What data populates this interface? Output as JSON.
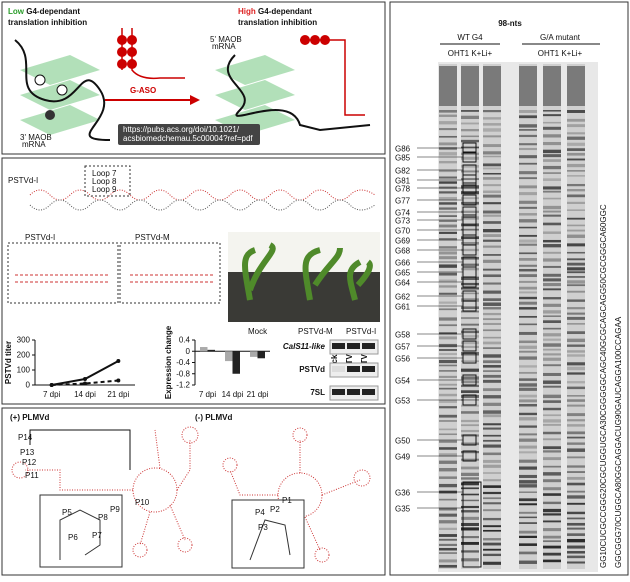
{
  "panel_a": {
    "low": "Low",
    "low_rest": "G4-dependant",
    "low_line2": "translation inhibition",
    "high": "High",
    "high_rest": "G4-dependant",
    "high_line2": "translation inhibition",
    "aso": "G-ASO",
    "mrna_5": "5' MAOB",
    "mrna_5b": "mRNA",
    "mrna_3": "3' MAOB",
    "mrna_3b": "mRNA",
    "tooltip_1": "https://pubs.acs.org/doi/10.1021/",
    "tooltip_2": "acsbiomedchemau.5c00004?ref=pdf"
  },
  "panel_b": {
    "strip_label": "PSTVd-I",
    "box_left": "PSTVd-I",
    "box_right": "PSTVd-M",
    "loops": [
      "Loop 7",
      "Loop 8",
      "Loop 9"
    ],
    "photo_labels": [
      "Mock",
      "PSTVd-M",
      "PSTVd-I"
    ],
    "titer_chart": {
      "type": "line",
      "y_label": "PSTVd titer",
      "categories": [
        "7 dpi",
        "14 dpi",
        "21 dpi"
      ],
      "series": [
        {
          "color": "#111",
          "dash": false,
          "values": [
            0,
            40,
            160
          ]
        },
        {
          "color": "#111",
          "dash": true,
          "values": [
            0,
            10,
            30
          ]
        }
      ],
      "ylim": [
        0,
        300
      ],
      "yticks": [
        0,
        100,
        200,
        300
      ]
    },
    "expr_chart": {
      "type": "bar",
      "y_label": "Expression change",
      "categories": [
        "7 dpi",
        "14 dpi",
        "21 dpi"
      ],
      "series": [
        {
          "color": "#aaa",
          "values": [
            0.15,
            -0.35,
            -0.2
          ]
        },
        {
          "color": "#222",
          "values": [
            0.05,
            -0.8,
            -0.25
          ]
        }
      ],
      "ylim": [
        -1.2,
        0.4
      ],
      "yticks": [
        -1.2,
        -0.8,
        -0.4,
        0,
        0.4
      ]
    },
    "blot": {
      "columns": [
        "Mock",
        "PSTVd-M",
        "PSTVd-I"
      ],
      "rows": [
        "CalS11-like",
        "PSTVd",
        "7SL"
      ]
    }
  },
  "panel_c": {
    "left": "(+) PLMVd",
    "right": "(-) PLMVd",
    "stems": [
      "P14",
      "P13",
      "P12",
      "P11",
      "P10",
      "P9",
      "P8",
      "P7",
      "P6",
      "P5",
      "P4",
      "P3",
      "P2",
      "P1"
    ]
  },
  "panel_d": {
    "title": "98-nts",
    "wt": "WT G4",
    "mut": "G/A mutant",
    "lanes_wt": "OHT1 K+Li+",
    "lanes_mut": "OHT1 K+Li+",
    "g_labels": [
      "G86",
      "G85",
      "G82",
      "G81",
      "G78",
      "G77",
      "G74",
      "G73",
      "G70",
      "G69",
      "G68",
      "G66",
      "G65",
      "G64",
      "G62",
      "G61",
      "G58",
      "G57",
      "G56",
      "G54",
      "G53",
      "G50",
      "G49",
      "G36",
      "G35"
    ],
    "sequence": [
      "GG10CUCGCCGGG20CGCUGGUGCA30CGGGGGCAGC40GCGCAGCAGG50CGCGGGCA60GGC",
      "GGCGGG70CUGGCA80GGCAGGACUG90GAUCAGGA100CCAGAA"
    ]
  }
}
